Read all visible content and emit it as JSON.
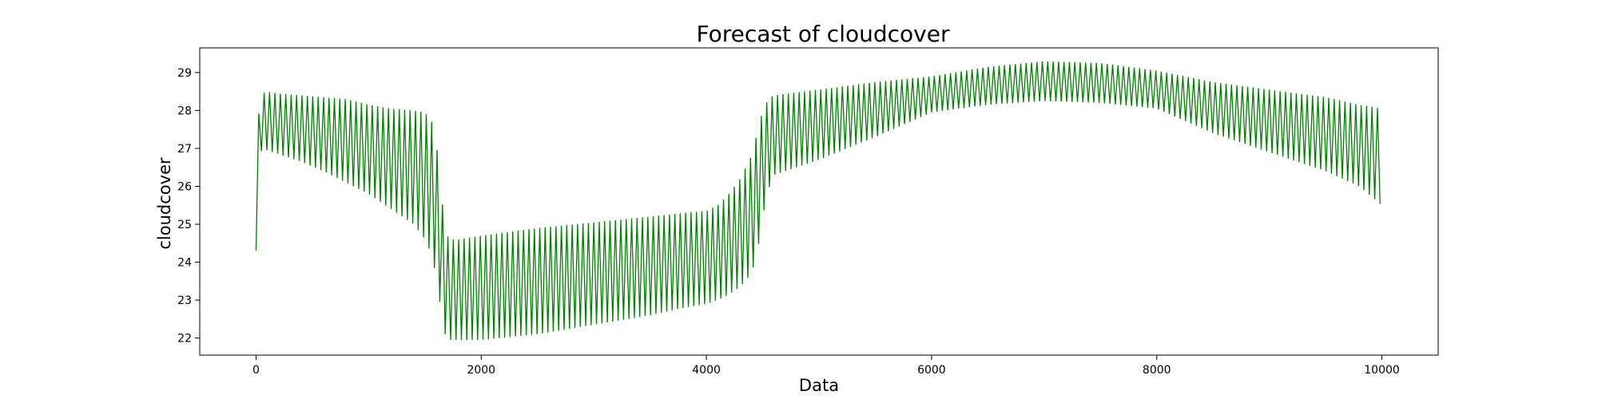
{
  "chart_data": {
    "type": "line",
    "title": "Forecast of cloudcover",
    "xlabel": "Data",
    "ylabel": "cloudcover",
    "xlim": [
      -500,
      10500
    ],
    "ylim": [
      21.55,
      29.65
    ],
    "xticks": [
      0,
      2000,
      4000,
      6000,
      8000,
      10000
    ],
    "yticks": [
      22,
      23,
      24,
      25,
      26,
      27,
      28,
      29
    ],
    "grid": false,
    "legend": "none",
    "color": "#008000",
    "series": [
      {
        "name": "",
        "x_start": 0,
        "x_end": 10000,
        "oscillation_period": 48,
        "envelope": {
          "x": [
            0,
            15,
            30,
            60,
            100,
            200,
            400,
            600,
            800,
            1000,
            1200,
            1400,
            1500,
            1560,
            1600,
            1640,
            1680,
            1720,
            1760,
            1800,
            2000,
            2500,
            3000,
            3500,
            3800,
            4000,
            4100,
            4200,
            4300,
            4400,
            4450,
            4500,
            4550,
            4600,
            5000,
            5500,
            6000,
            6500,
            7000,
            7500,
            8000,
            8500,
            9000,
            9500,
            9800,
            10000
          ],
          "upper": [
            26.0,
            27.5,
            28.2,
            28.45,
            28.5,
            28.45,
            28.4,
            28.35,
            28.3,
            28.15,
            28.05,
            28.0,
            27.95,
            27.7,
            27.2,
            26.0,
            24.8,
            24.6,
            24.6,
            24.6,
            24.7,
            24.9,
            25.05,
            25.2,
            25.3,
            25.35,
            25.5,
            25.8,
            26.2,
            26.8,
            27.4,
            28.0,
            28.3,
            28.4,
            28.55,
            28.75,
            28.9,
            29.15,
            29.3,
            29.25,
            29.05,
            28.75,
            28.55,
            28.35,
            28.15,
            28.05
          ],
          "lower": [
            24.3,
            26.0,
            26.9,
            26.95,
            26.95,
            26.85,
            26.65,
            26.4,
            26.1,
            25.8,
            25.4,
            25.0,
            24.6,
            24.2,
            23.6,
            22.8,
            22.1,
            21.95,
            21.95,
            21.95,
            21.95,
            22.1,
            22.35,
            22.6,
            22.8,
            22.9,
            23.0,
            23.15,
            23.35,
            23.7,
            24.2,
            25.2,
            25.9,
            26.3,
            26.7,
            27.3,
            27.95,
            28.15,
            28.25,
            28.2,
            28.05,
            27.4,
            26.9,
            26.4,
            26.0,
            25.5
          ]
        }
      }
    ]
  }
}
